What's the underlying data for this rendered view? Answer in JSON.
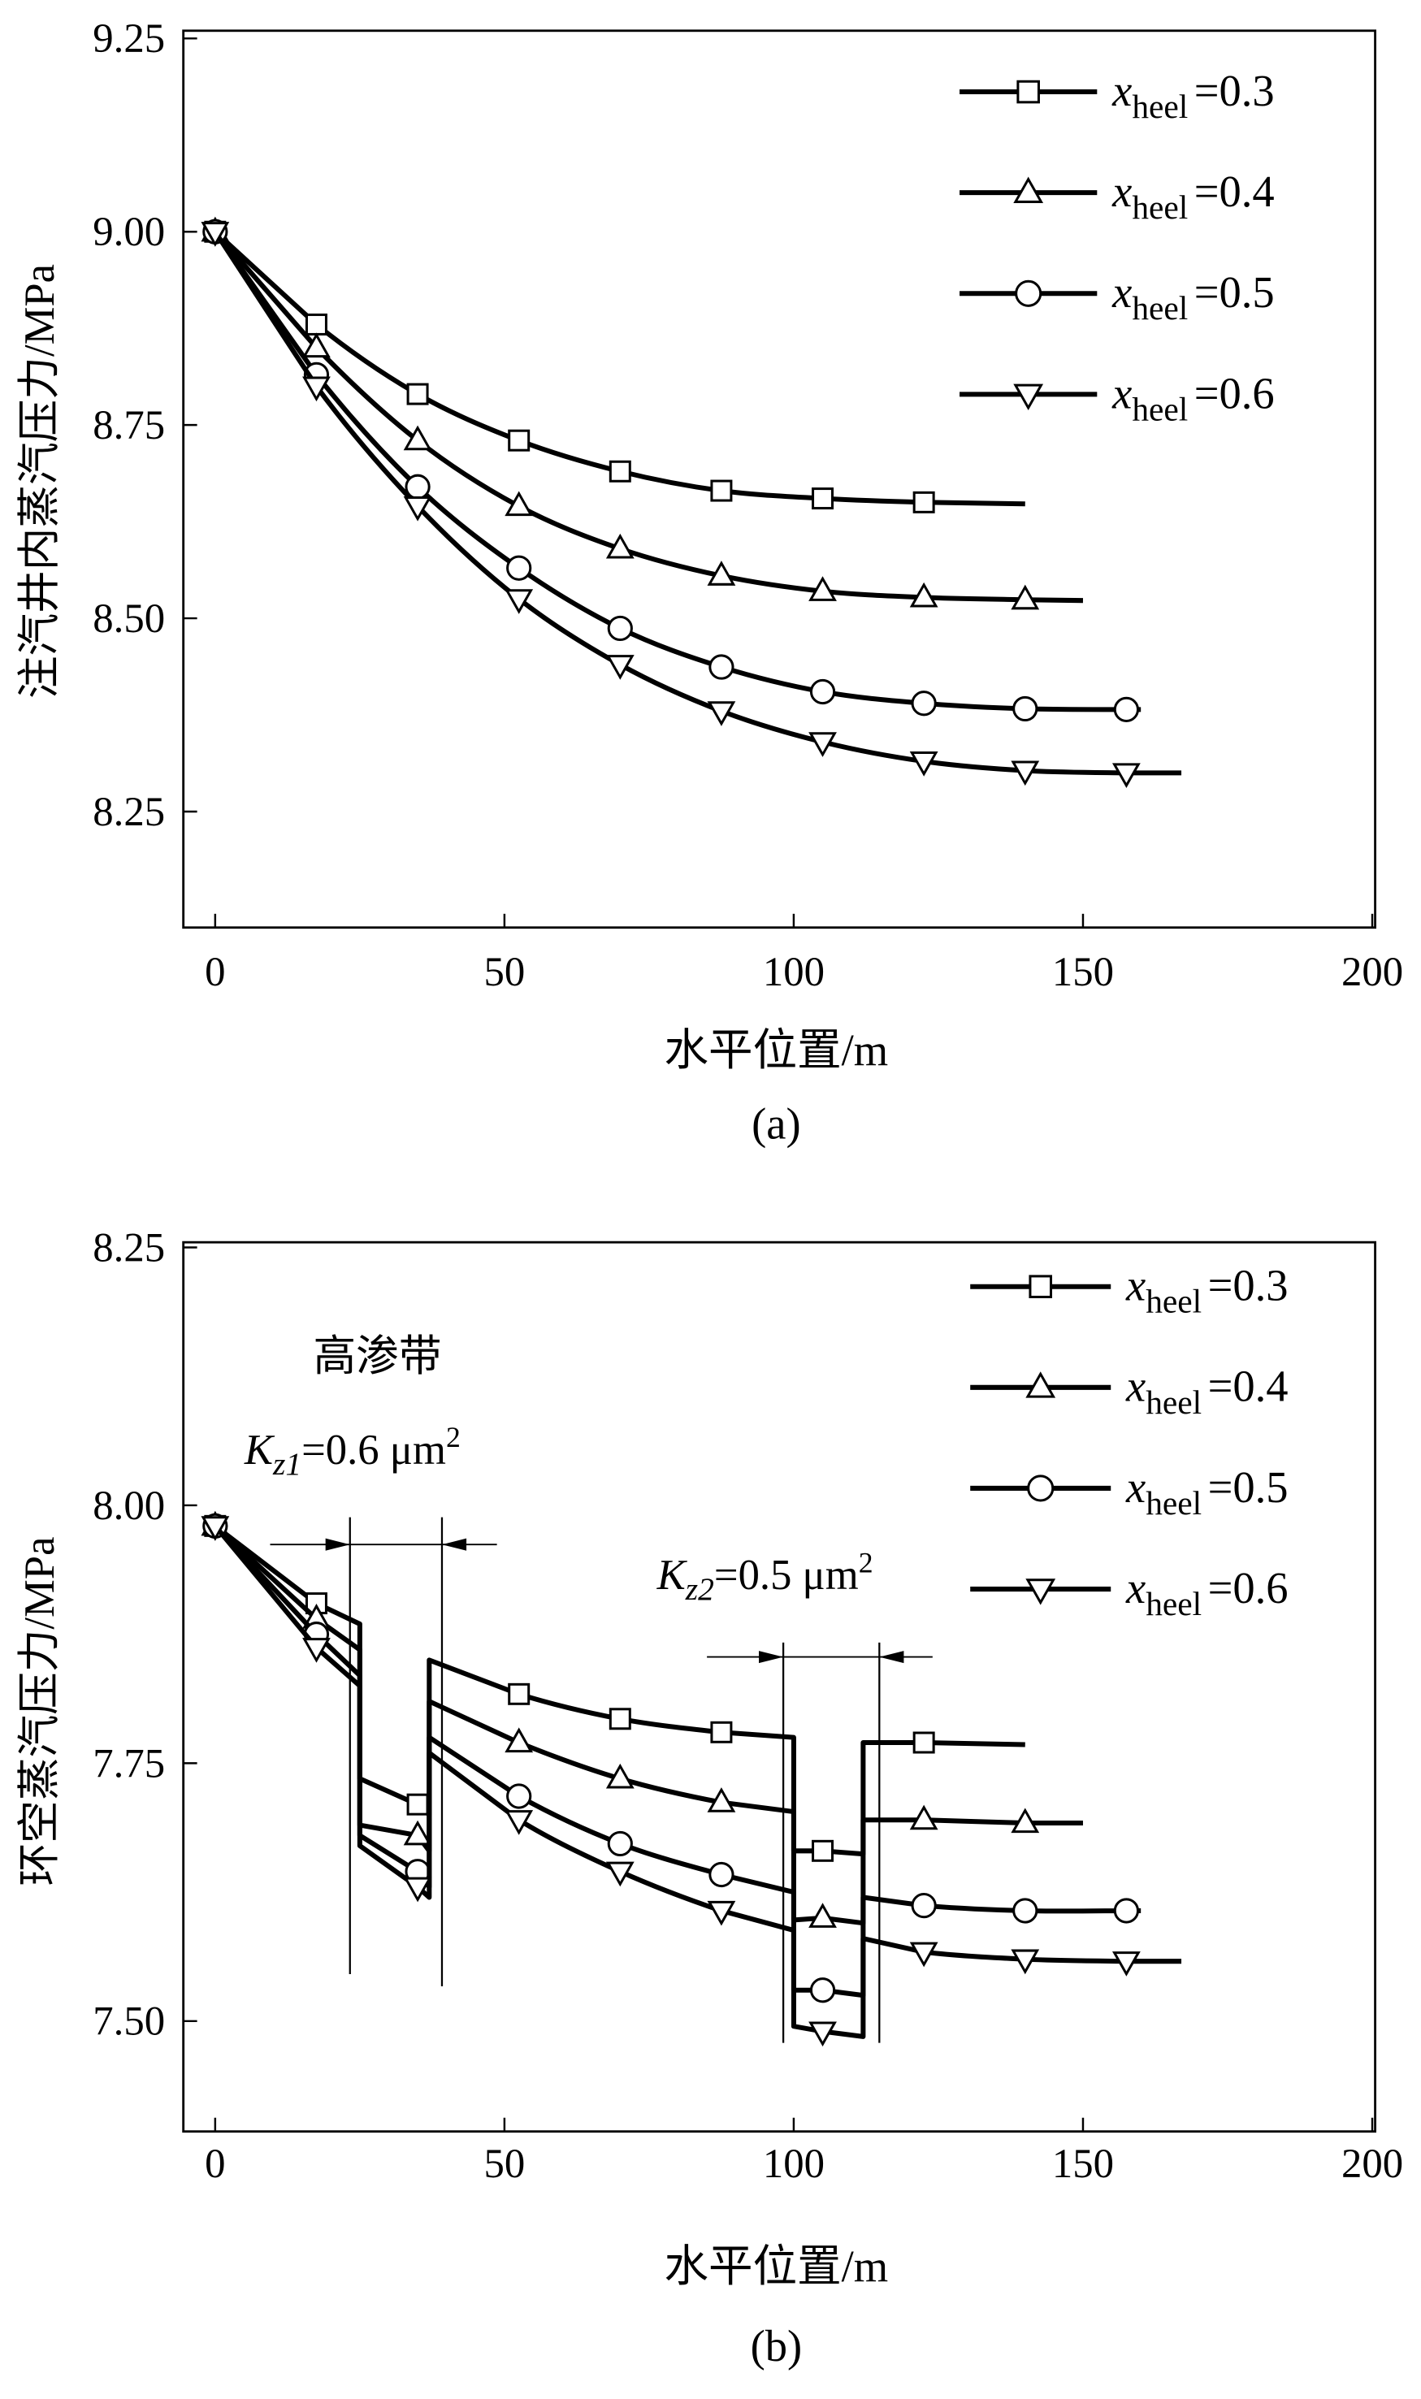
{
  "chart_data": [
    {
      "type": "line",
      "panel_label": "(a)",
      "xlabel": "水平位置/m",
      "ylabel": "注汽井内蒸汽压力/MPa",
      "xlim": [
        -5.5,
        200.5
      ],
      "ylim": [
        8.1,
        9.26
      ],
      "xticks": [
        "0",
        "50",
        "100",
        "150",
        "200"
      ],
      "yticks": [
        "8.25",
        "8.50",
        "8.75",
        "9.00",
        "9.25"
      ],
      "grid": false,
      "legend_position": "top-right",
      "series": [
        {
          "name_var": "x",
          "name_sub": "heel",
          "name_val": "=0.3",
          "marker": "square",
          "points": [
            [
              0,
              9.0
            ],
            [
              17.5,
              8.88
            ],
            [
              35,
              8.79
            ],
            [
              52.5,
              8.73
            ],
            [
              70,
              8.69
            ],
            [
              87.5,
              8.665
            ],
            [
              105,
              8.655
            ],
            [
              122.5,
              8.65
            ],
            [
              140,
              8.648
            ]
          ],
          "markers": [
            [
              0,
              9.0
            ],
            [
              17.5,
              8.88
            ],
            [
              35,
              8.79
            ],
            [
              52.5,
              8.73
            ],
            [
              70,
              8.69
            ],
            [
              87.5,
              8.665
            ],
            [
              105,
              8.655
            ],
            [
              122.5,
              8.65
            ]
          ]
        },
        {
          "name_var": "x",
          "name_sub": "heel",
          "name_val": "=0.4",
          "marker": "triangle-up",
          "points": [
            [
              0,
              9.0
            ],
            [
              17.5,
              8.85
            ],
            [
              35,
              8.73
            ],
            [
              52.5,
              8.645
            ],
            [
              70,
              8.59
            ],
            [
              87.5,
              8.555
            ],
            [
              105,
              8.535
            ],
            [
              122.5,
              8.527
            ],
            [
              140,
              8.524
            ],
            [
              150,
              8.523
            ]
          ],
          "markers": [
            [
              0,
              9.0
            ],
            [
              17.5,
              8.85
            ],
            [
              35,
              8.73
            ],
            [
              52.5,
              8.645
            ],
            [
              70,
              8.59
            ],
            [
              87.5,
              8.555
            ],
            [
              105,
              8.535
            ],
            [
              122.5,
              8.527
            ],
            [
              140,
              8.524
            ]
          ]
        },
        {
          "name_var": "x",
          "name_sub": "heel",
          "name_val": "=0.5",
          "marker": "circle",
          "points": [
            [
              0,
              9.0
            ],
            [
              17.5,
              8.815
            ],
            [
              35,
              8.67
            ],
            [
              52.5,
              8.565
            ],
            [
              70,
              8.487
            ],
            [
              87.5,
              8.437
            ],
            [
              105,
              8.405
            ],
            [
              122.5,
              8.39
            ],
            [
              140,
              8.383
            ],
            [
              157.5,
              8.382
            ],
            [
              160,
              8.382
            ]
          ],
          "markers": [
            [
              0,
              9.0
            ],
            [
              17.5,
              8.815
            ],
            [
              35,
              8.67
            ],
            [
              52.5,
              8.565
            ],
            [
              70,
              8.487
            ],
            [
              87.5,
              8.437
            ],
            [
              105,
              8.405
            ],
            [
              122.5,
              8.39
            ],
            [
              140,
              8.383
            ],
            [
              157.5,
              8.382
            ]
          ]
        },
        {
          "name_var": "x",
          "name_sub": "heel",
          "name_val": "=0.6",
          "marker": "triangle-down",
          "points": [
            [
              0,
              9.0
            ],
            [
              17.5,
              8.8
            ],
            [
              35,
              8.645
            ],
            [
              52.5,
              8.525
            ],
            [
              70,
              8.44
            ],
            [
              87.5,
              8.38
            ],
            [
              105,
              8.34
            ],
            [
              122.5,
              8.315
            ],
            [
              140,
              8.303
            ],
            [
              157.5,
              8.3
            ],
            [
              167,
              8.3
            ]
          ],
          "markers": [
            [
              0,
              9.0
            ],
            [
              17.5,
              8.8
            ],
            [
              35,
              8.645
            ],
            [
              52.5,
              8.525
            ],
            [
              70,
              8.44
            ],
            [
              87.5,
              8.38
            ],
            [
              105,
              8.34
            ],
            [
              122.5,
              8.315
            ],
            [
              140,
              8.303
            ],
            [
              157.5,
              8.3
            ]
          ]
        }
      ]
    },
    {
      "type": "line",
      "panel_label": "(b)",
      "xlabel": "水平位置/m",
      "ylabel": "环空蒸汽压力/MPa",
      "xlim": [
        -5.5,
        200.5
      ],
      "ylim": [
        7.393,
        8.255
      ],
      "xticks": [
        "0",
        "50",
        "100",
        "150",
        "200"
      ],
      "yticks": [
        "7.50",
        "7.75",
        "8.00",
        "8.25"
      ],
      "grid": false,
      "legend_position": "top-right",
      "annotations": {
        "zone_label": "高渗带",
        "zone1": {
          "k": "K",
          "sub": "z1",
          "val": "=0.6 μm",
          "sup": "2",
          "x_range": [
            23.3,
            39.2
          ]
        },
        "zone2": {
          "k": "K",
          "sub": "z2",
          "val": "=0.5 μm",
          "sup": "2",
          "x_range": [
            98.2,
            114.8
          ]
        }
      },
      "series": [
        {
          "name_var": "x",
          "name_sub": "heel",
          "name_val": "=0.3",
          "marker": "square",
          "points": [
            [
              0,
              7.98
            ],
            [
              17.5,
              7.905
            ],
            [
              25,
              7.885
            ],
            [
              25,
              7.735
            ],
            [
              35,
              7.71
            ],
            [
              37,
              7.7
            ],
            [
              37,
              7.85
            ],
            [
              52.5,
              7.817
            ],
            [
              70,
              7.793
            ],
            [
              87.5,
              7.78
            ],
            [
              100,
              7.775
            ],
            [
              100,
              7.665
            ],
            [
              105,
              7.665
            ],
            [
              112,
              7.662
            ],
            [
              112,
              7.77
            ],
            [
              122.5,
              7.77
            ],
            [
              140,
              7.768
            ]
          ],
          "markers": [
            [
              0,
              7.98
            ],
            [
              17.5,
              7.905
            ],
            [
              35,
              7.71
            ],
            [
              52.5,
              7.817
            ],
            [
              70,
              7.793
            ],
            [
              87.5,
              7.78
            ],
            [
              105,
              7.665
            ],
            [
              122.5,
              7.77
            ]
          ]
        },
        {
          "name_var": "x",
          "name_sub": "heel",
          "name_val": "=0.4",
          "marker": "triangle-up",
          "points": [
            [
              0,
              7.98
            ],
            [
              17.5,
              7.89
            ],
            [
              25,
              7.86
            ],
            [
              25,
              7.69
            ],
            [
              35,
              7.68
            ],
            [
              37,
              7.665
            ],
            [
              37,
              7.81
            ],
            [
              52.5,
              7.77
            ],
            [
              70,
              7.735
            ],
            [
              87.5,
              7.712
            ],
            [
              100,
              7.703
            ],
            [
              100,
              7.598
            ],
            [
              105,
              7.6
            ],
            [
              112,
              7.595
            ],
            [
              112,
              7.695
            ],
            [
              122.5,
              7.695
            ],
            [
              140,
              7.692
            ],
            [
              150,
              7.692
            ]
          ],
          "markers": [
            [
              0,
              7.98
            ],
            [
              17.5,
              7.89
            ],
            [
              35,
              7.68
            ],
            [
              52.5,
              7.77
            ],
            [
              70,
              7.735
            ],
            [
              87.5,
              7.712
            ],
            [
              105,
              7.6
            ],
            [
              122.5,
              7.695
            ],
            [
              140,
              7.692
            ]
          ]
        },
        {
          "name_var": "x",
          "name_sub": "heel",
          "name_val": "=0.5",
          "marker": "circle",
          "points": [
            [
              0,
              7.98
            ],
            [
              17.5,
              7.875
            ],
            [
              25,
              7.835
            ],
            [
              25,
              7.68
            ],
            [
              35,
              7.645
            ],
            [
              37,
              7.63
            ],
            [
              37,
              7.775
            ],
            [
              52.5,
              7.718
            ],
            [
              70,
              7.672
            ],
            [
              87.5,
              7.642
            ],
            [
              100,
              7.625
            ],
            [
              100,
              7.53
            ],
            [
              105,
              7.53
            ],
            [
              112,
              7.525
            ],
            [
              112,
              7.62
            ],
            [
              122.5,
              7.612
            ],
            [
              140,
              7.607
            ],
            [
              157.5,
              7.607
            ],
            [
              160,
              7.607
            ]
          ],
          "markers": [
            [
              0,
              7.98
            ],
            [
              17.5,
              7.875
            ],
            [
              35,
              7.645
            ],
            [
              52.5,
              7.718
            ],
            [
              70,
              7.672
            ],
            [
              87.5,
              7.642
            ],
            [
              105,
              7.53
            ],
            [
              122.5,
              7.612
            ],
            [
              140,
              7.607
            ],
            [
              157.5,
              7.607
            ]
          ]
        },
        {
          "name_var": "x",
          "name_sub": "heel",
          "name_val": "=0.6",
          "marker": "triangle-down",
          "points": [
            [
              0,
              7.98
            ],
            [
              17.5,
              7.862
            ],
            [
              25,
              7.825
            ],
            [
              25,
              7.67
            ],
            [
              35,
              7.63
            ],
            [
              37,
              7.62
            ],
            [
              37,
              7.76
            ],
            [
              52.5,
              7.695
            ],
            [
              70,
              7.645
            ],
            [
              87.5,
              7.607
            ],
            [
              100,
              7.588
            ],
            [
              100,
              7.495
            ],
            [
              105,
              7.49
            ],
            [
              112,
              7.485
            ],
            [
              112,
              7.58
            ],
            [
              122.5,
              7.567
            ],
            [
              140,
              7.56
            ],
            [
              157.5,
              7.558
            ],
            [
              167,
              7.558
            ]
          ],
          "markers": [
            [
              0,
              7.98
            ],
            [
              17.5,
              7.862
            ],
            [
              35,
              7.63
            ],
            [
              52.5,
              7.695
            ],
            [
              70,
              7.645
            ],
            [
              87.5,
              7.607
            ],
            [
              105,
              7.49
            ],
            [
              122.5,
              7.567
            ],
            [
              140,
              7.56
            ],
            [
              157.5,
              7.558
            ]
          ]
        }
      ]
    }
  ]
}
